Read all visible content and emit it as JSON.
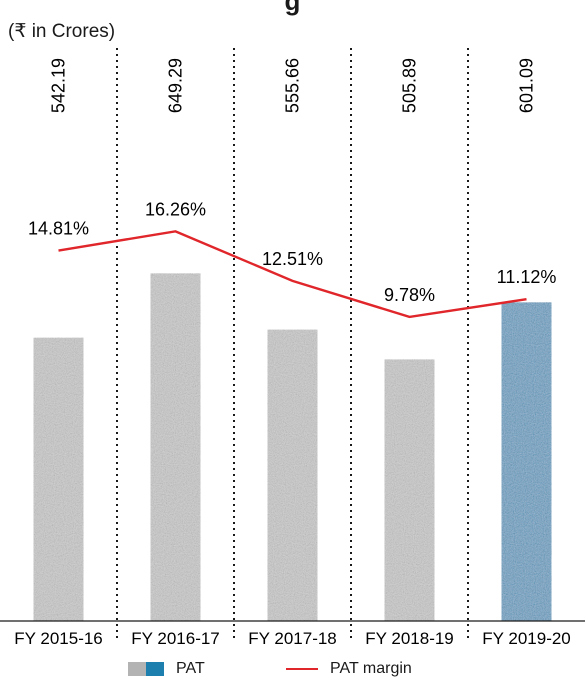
{
  "unit_label": "(₹ in Crores)",
  "title_fragment": "g",
  "chart_data": {
    "type": "bar",
    "categories": [
      "FY 2015-16",
      "FY 2016-17",
      "FY 2017-18",
      "FY 2018-19",
      "FY 2019-20"
    ],
    "series": [
      {
        "name": "PAT",
        "type": "bar",
        "values": [
          542.19,
          649.29,
          555.66,
          505.89,
          601.09
        ],
        "value_labels": [
          "542.19",
          "649.29",
          "555.66",
          "505.89",
          "601.09"
        ]
      },
      {
        "name": "PAT margin",
        "type": "line",
        "values": [
          14.81,
          16.26,
          12.51,
          9.78,
          11.12
        ],
        "value_labels": [
          "14.81%",
          "16.26%",
          "12.51%",
          "9.78%",
          "11.12%"
        ]
      }
    ],
    "highlight_index": 4,
    "colors": {
      "bar": "#b3b3b3",
      "bar_highlight": "#1d7fae",
      "line": "#e0262a",
      "divider": "#1a1a1a"
    },
    "grid": false,
    "legend_position": "bottom"
  },
  "legend": {
    "pat_label": "PAT",
    "margin_label": "PAT margin"
  }
}
